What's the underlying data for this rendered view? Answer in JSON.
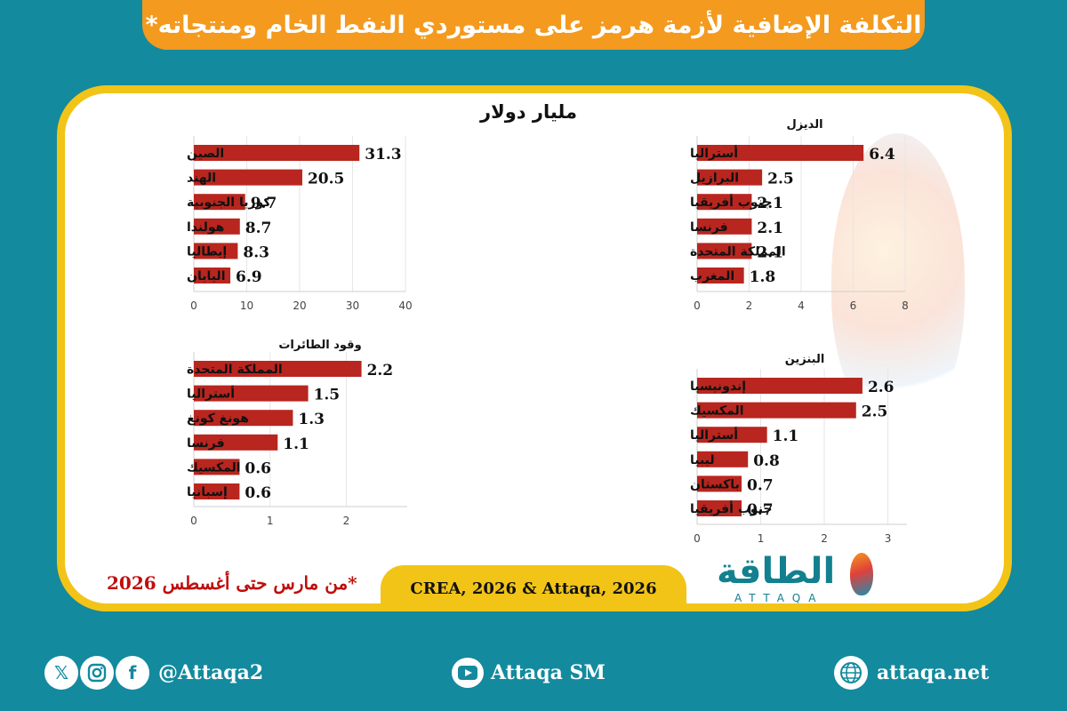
{
  "header": {
    "title": "التكلفة الإضافية لأزمة هرمز على مستوردي النفط الخام ومنتجاته*"
  },
  "unit_title": "مليار دولار",
  "note": "*من مارس حتى أغسطس 2026",
  "source": "CREA, 2026 & Attaqa, 2026",
  "logo": {
    "arabic": "الطاقة",
    "latin": "ATTAQA"
  },
  "watermark": {
    "arabic": "الطاقة",
    "latin": "ATTAQA"
  },
  "footer": {
    "social_handle": "@Attaqa2",
    "youtube_handle": "Attaqa SM",
    "website": "attaqa.net",
    "icons": [
      "x-icon",
      "instagram-icon",
      "facebook-icon",
      "youtube-icon",
      "globe-icon"
    ]
  },
  "colors": {
    "background": "#138a9e",
    "banner": "#f49a1e",
    "frame": "#f2c418",
    "bar": "#b8261f",
    "note": "#c00d0d"
  },
  "chart_data": [
    {
      "type": "bar",
      "orientation": "horizontal",
      "title": "",
      "categories": [
        "الصين",
        "الهند",
        "كوريا الجنوبية",
        "هولندا",
        "إيطاليا",
        "اليابان"
      ],
      "values": [
        31.3,
        20.5,
        9.7,
        8.7,
        8.3,
        6.9
      ],
      "value_labels": [
        "31.3",
        "20.5",
        "9.7",
        "8.7",
        "8.3",
        "6.9"
      ],
      "xlim": [
        0,
        40
      ],
      "ticks": [
        "0",
        "10",
        "20",
        "30",
        "40"
      ],
      "grid": true
    },
    {
      "type": "bar",
      "orientation": "horizontal",
      "title": "الديزل",
      "categories": [
        "أستراليا",
        "البرازيل",
        "جنوب أفريقيا",
        "فرنسا",
        "المملكة المتحدة",
        "المغرب"
      ],
      "values": [
        6.4,
        2.5,
        2.1,
        2.1,
        2.1,
        1.8
      ],
      "value_labels": [
        "6.4",
        "2.5",
        "2.1",
        "2.1",
        "2.1",
        "1.8"
      ],
      "xlim": [
        0,
        8
      ],
      "ticks": [
        "0",
        "2",
        "4",
        "6",
        "8"
      ],
      "grid": true
    },
    {
      "type": "bar",
      "orientation": "horizontal",
      "title": "وقود الطائرات",
      "categories": [
        "المملكة المتحدة",
        "أستراليا",
        "هونغ كونغ",
        "فرنسا",
        "المكسيك",
        "إسبانيا"
      ],
      "values": [
        2.2,
        1.5,
        1.3,
        1.1,
        0.6,
        0.6
      ],
      "value_labels": [
        "2.2",
        "1.5",
        "1.3",
        "1.1",
        "0.6",
        "0.6"
      ],
      "xlim": [
        0,
        2.8
      ],
      "ticks": [
        "0",
        "1",
        "2"
      ],
      "grid": true
    },
    {
      "type": "bar",
      "orientation": "horizontal",
      "title": "البنزين",
      "categories": [
        "إندونيسيا",
        "المكسيك",
        "أستراليا",
        "ليبيا",
        "باكستان",
        "جنوب أفريقيا"
      ],
      "values": [
        2.6,
        2.5,
        1.1,
        0.8,
        0.7,
        0.7
      ],
      "value_labels": [
        "2.6",
        "2.5",
        "1.1",
        "0.8",
        "0.7",
        "0.7"
      ],
      "xlim": [
        0,
        3.3
      ],
      "ticks": [
        "0",
        "1",
        "2",
        "3"
      ],
      "grid": true
    }
  ]
}
